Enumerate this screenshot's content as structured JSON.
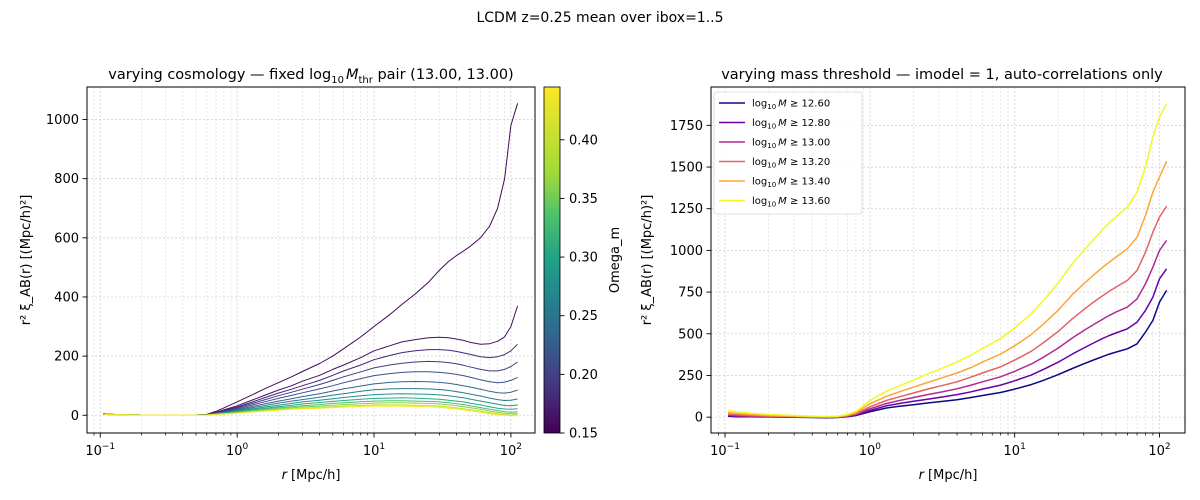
{
  "figure": {
    "suptitle": "LCDM  z=0.25  mean over ibox=1..5"
  },
  "chart_data": [
    {
      "type": "line",
      "title": "varying cosmology — fixed log₁₀ M_thr pair (13.00, 13.00)",
      "title_parts": {
        "pre": "varying cosmology — fixed log",
        "sub10": "10",
        "M": "M",
        "thr": "thr",
        "post": " pair (13.00, 13.00)"
      },
      "xlabel": {
        "r": "r",
        "unit": " [Mpc/h]"
      },
      "ylabel": {
        "text": "r² ξ_AB(r) [(Mpc/h)²]"
      },
      "xscale": "log",
      "xlim": [
        0.08,
        150
      ],
      "ylim": [
        -60,
        1110
      ],
      "xticks": [
        {
          "v": 0.1,
          "b": "10",
          "e": "−1"
        },
        {
          "v": 1,
          "b": "10",
          "e": "0"
        },
        {
          "v": 10,
          "b": "10",
          "e": "1"
        },
        {
          "v": 100,
          "b": "10",
          "e": "2"
        }
      ],
      "yticks": [
        0,
        200,
        400,
        600,
        800,
        1000
      ],
      "grid": true,
      "colorbar": {
        "label": "Omega_m",
        "colormap": "viridis",
        "range": [
          0.15,
          0.445
        ],
        "ticks": [
          "0.15",
          "0.20",
          "0.25",
          "0.30",
          "0.35",
          "0.40"
        ]
      },
      "series_colors": "viridis",
      "r": [
        0.105,
        0.12,
        0.15,
        0.2,
        0.3,
        0.4,
        0.5,
        0.6,
        0.7,
        0.8,
        1.0,
        1.3,
        1.6,
        2.0,
        2.5,
        3.0,
        4.0,
        5.0,
        6.0,
        8.0,
        10.0,
        13.0,
        16.0,
        20.0,
        25.0,
        30.0,
        35.0,
        40.0,
        45.0,
        50.0,
        60.0,
        70.0,
        80.0,
        90.0,
        100.0,
        112.0
      ],
      "series": [
        {
          "omega_m": 0.155,
          "values": [
            5,
            3,
            2,
            1,
            1,
            1,
            1,
            3,
            13,
            25,
            45,
            70,
            90,
            110,
            130,
            148,
            175,
            200,
            225,
            265,
            300,
            340,
            375,
            410,
            450,
            490,
            520,
            540,
            555,
            570,
            600,
            640,
            700,
            800,
            980,
            1055
          ]
        },
        {
          "omega_m": 0.162,
          "values": [
            5,
            3,
            2,
            1,
            1,
            1,
            1,
            2,
            10,
            18,
            32,
            52,
            68,
            85,
            100,
            115,
            135,
            155,
            170,
            195,
            218,
            235,
            248,
            256,
            262,
            264,
            262,
            258,
            253,
            247,
            240,
            242,
            250,
            265,
            300,
            370
          ]
        },
        {
          "omega_m": 0.18,
          "values": [
            5,
            3,
            2,
            1,
            1,
            1,
            1,
            2,
            9,
            16,
            28,
            45,
            60,
            75,
            88,
            100,
            118,
            135,
            150,
            170,
            188,
            202,
            212,
            218,
            222,
            222,
            220,
            216,
            211,
            206,
            198,
            195,
            198,
            205,
            218,
            240
          ]
        },
        {
          "omega_m": 0.2,
          "values": [
            5,
            3,
            2,
            1,
            1,
            1,
            1,
            2,
            8,
            14,
            25,
            40,
            53,
            66,
            78,
            88,
            104,
            118,
            130,
            147,
            160,
            170,
            176,
            180,
            182,
            181,
            178,
            174,
            169,
            164,
            155,
            150,
            150,
            155,
            165,
            180
          ]
        },
        {
          "omega_m": 0.22,
          "values": [
            4,
            3,
            2,
            1,
            1,
            1,
            1,
            2,
            7,
            12,
            22,
            35,
            46,
            57,
            67,
            76,
            89,
            100,
            110,
            124,
            134,
            141,
            145,
            147,
            147,
            145,
            142,
            138,
            134,
            129,
            120,
            113,
            110,
            112,
            118,
            128
          ]
        },
        {
          "omega_m": 0.245,
          "values": [
            4,
            3,
            2,
            1,
            1,
            1,
            1,
            2,
            6,
            11,
            19,
            30,
            39,
            48,
            56,
            63,
            73,
            82,
            89,
            99,
            106,
            111,
            113,
            114,
            113,
            111,
            108,
            104,
            100,
            96,
            88,
            81,
            76,
            75,
            78,
            85
          ]
        },
        {
          "omega_m": 0.27,
          "values": [
            4,
            3,
            2,
            1,
            1,
            1,
            1,
            2,
            5,
            9,
            16,
            26,
            33,
            41,
            48,
            53,
            61,
            68,
            73,
            81,
            86,
            89,
            90,
            90,
            89,
            87,
            84,
            80,
            76,
            72,
            65,
            58,
            53,
            50,
            51,
            55
          ]
        },
        {
          "omega_m": 0.3,
          "values": [
            4,
            3,
            2,
            1,
            1,
            1,
            1,
            2,
            5,
            8,
            14,
            22,
            28,
            34,
            40,
            45,
            51,
            56,
            60,
            66,
            70,
            72,
            73,
            72,
            71,
            69,
            66,
            62,
            59,
            55,
            48,
            42,
            37,
            33,
            32,
            35
          ]
        },
        {
          "omega_m": 0.33,
          "values": [
            4,
            3,
            2,
            1,
            1,
            1,
            1,
            1,
            4,
            7,
            12,
            19,
            24,
            29,
            34,
            38,
            43,
            47,
            50,
            54,
            57,
            58,
            59,
            58,
            56,
            54,
            51,
            48,
            45,
            41,
            35,
            29,
            24,
            21,
            20,
            22
          ]
        },
        {
          "omega_m": 0.36,
          "values": [
            3,
            2,
            2,
            1,
            1,
            1,
            1,
            1,
            4,
            6,
            10,
            16,
            21,
            25,
            29,
            32,
            36,
            40,
            42,
            46,
            48,
            49,
            49,
            48,
            47,
            45,
            42,
            39,
            36,
            32,
            26,
            20,
            16,
            12,
            10,
            12
          ]
        },
        {
          "omega_m": 0.39,
          "values": [
            3,
            2,
            2,
            1,
            1,
            1,
            1,
            1,
            3,
            5,
            9,
            14,
            18,
            22,
            25,
            28,
            31,
            34,
            36,
            39,
            41,
            42,
            42,
            41,
            40,
            38,
            35,
            32,
            29,
            26,
            20,
            14,
            10,
            6,
            5,
            6
          ]
        },
        {
          "omega_m": 0.42,
          "values": [
            3,
            2,
            2,
            1,
            1,
            1,
            1,
            1,
            3,
            5,
            8,
            12,
            15,
            19,
            22,
            24,
            27,
            29,
            31,
            33,
            35,
            35,
            35,
            34,
            33,
            31,
            28,
            25,
            22,
            19,
            14,
            9,
            5,
            2,
            1,
            2
          ]
        },
        {
          "omega_m": 0.44,
          "values": [
            3,
            2,
            2,
            1,
            1,
            1,
            1,
            1,
            3,
            4,
            7,
            11,
            14,
            17,
            20,
            22,
            24,
            26,
            28,
            30,
            31,
            31,
            31,
            30,
            29,
            27,
            24,
            21,
            18,
            15,
            10,
            5,
            2,
            0,
            -2,
            -1
          ]
        }
      ]
    },
    {
      "type": "line",
      "title": "varying mass threshold — imodel = 1, auto-correlations only",
      "xlabel": {
        "r": "r",
        "unit": " [Mpc/h]"
      },
      "ylabel": {
        "text": "r² ξ_AB(r) [(Mpc/h)²]"
      },
      "xscale": "log",
      "xlim": [
        0.08,
        150
      ],
      "ylim": [
        -95,
        1980
      ],
      "xticks": [
        {
          "v": 0.1,
          "b": "10",
          "e": "−1"
        },
        {
          "v": 1,
          "b": "10",
          "e": "0"
        },
        {
          "v": 10,
          "b": "10",
          "e": "1"
        },
        {
          "v": 100,
          "b": "10",
          "e": "2"
        }
      ],
      "yticks": [
        0,
        250,
        500,
        750,
        1000,
        1250,
        1500,
        1750
      ],
      "grid": true,
      "legend": {
        "placement": "upper-left"
      },
      "r": [
        0.105,
        0.12,
        0.15,
        0.2,
        0.3,
        0.4,
        0.5,
        0.6,
        0.7,
        0.8,
        1.0,
        1.3,
        1.6,
        2.0,
        2.5,
        3.0,
        4.0,
        5.0,
        6.0,
        8.0,
        10.0,
        13.0,
        16.0,
        20.0,
        25.0,
        30.0,
        35.0,
        40.0,
        45.0,
        50.0,
        60.0,
        70.0,
        80.0,
        90.0,
        100.0,
        112.0
      ],
      "series": [
        {
          "name": "12.60",
          "color": "#0d0887",
          "values": [
            5,
            3,
            2,
            1,
            0,
            -2,
            -3,
            -2,
            2,
            10,
            32,
            55,
            65,
            75,
            85,
            92,
            105,
            118,
            130,
            148,
            168,
            195,
            222,
            255,
            292,
            320,
            343,
            362,
            378,
            390,
            410,
            440,
            510,
            580,
            690,
            760
          ]
        },
        {
          "name": "12.80",
          "color": "#6a00a8",
          "values": [
            8,
            6,
            4,
            2,
            1,
            -1,
            -2,
            -1,
            4,
            13,
            40,
            68,
            82,
            95,
            108,
            118,
            135,
            152,
            168,
            192,
            218,
            252,
            288,
            330,
            378,
            415,
            445,
            470,
            490,
            505,
            530,
            570,
            640,
            720,
            830,
            890
          ]
        },
        {
          "name": "13.00",
          "color": "#b12a90",
          "values": [
            12,
            9,
            6,
            3,
            2,
            0,
            -1,
            0,
            6,
            16,
            50,
            82,
            100,
            118,
            135,
            148,
            170,
            192,
            212,
            242,
            275,
            318,
            362,
            415,
            475,
            520,
            555,
            585,
            610,
            630,
            660,
            710,
            800,
            900,
            1000,
            1060
          ]
        },
        {
          "name": "13.20",
          "color": "#e16462",
          "values": [
            18,
            14,
            10,
            6,
            3,
            1,
            0,
            1,
            8,
            20,
            62,
            100,
            122,
            145,
            168,
            185,
            212,
            240,
            265,
            302,
            342,
            395,
            450,
            515,
            590,
            645,
            690,
            725,
            755,
            780,
            820,
            880,
            990,
            1110,
            1200,
            1265
          ]
        },
        {
          "name": "13.40",
          "color": "#fca636",
          "values": [
            28,
            22,
            16,
            10,
            6,
            3,
            2,
            3,
            12,
            26,
            80,
            125,
            152,
            180,
            208,
            230,
            265,
            298,
            330,
            378,
            428,
            495,
            562,
            642,
            735,
            800,
            852,
            895,
            930,
            960,
            1010,
            1080,
            1210,
            1350,
            1440,
            1535
          ]
        },
        {
          "name": "13.60",
          "color": "#f0f921",
          "values": [
            40,
            32,
            24,
            16,
            10,
            6,
            4,
            6,
            16,
            34,
            100,
            155,
            188,
            222,
            258,
            285,
            330,
            372,
            412,
            472,
            535,
            620,
            705,
            805,
            920,
            1000,
            1065,
            1120,
            1165,
            1200,
            1260,
            1350,
            1500,
            1680,
            1800,
            1880
          ]
        }
      ]
    }
  ]
}
